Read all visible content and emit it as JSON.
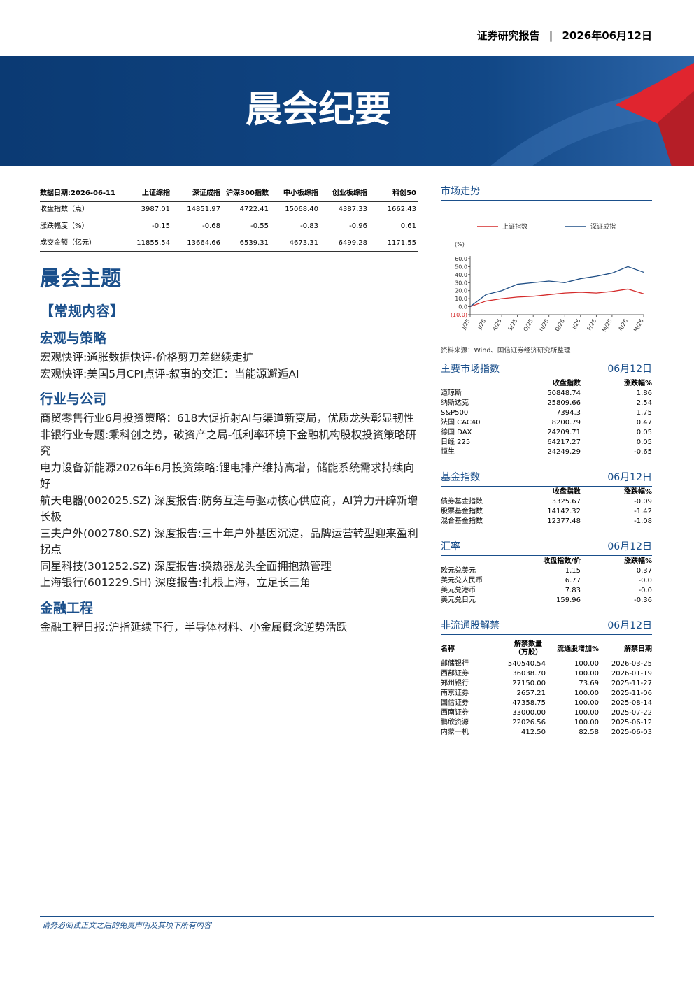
{
  "header": {
    "report_type": "证券研究报告",
    "date": "2026年06月12日",
    "title": "晨会纪要"
  },
  "market_table": {
    "header": [
      "数据日期:2026-06-11",
      "上证综指",
      "深证成指",
      "沪深300指数",
      "中小板综指",
      "创业板综指",
      "科创50"
    ],
    "rows": [
      [
        "收盘指数（点）",
        "3987.01",
        "14851.97",
        "4722.41",
        "15068.40",
        "4387.33",
        "1662.43"
      ],
      [
        "涨跌幅度（%）",
        "-0.15",
        "-0.68",
        "-0.55",
        "-0.83",
        "-0.96",
        "0.61"
      ],
      [
        "成交金额（亿元）",
        "11855.54",
        "13664.66",
        "6539.31",
        "4673.31",
        "6499.28",
        "1171.55"
      ]
    ]
  },
  "themes": {
    "title": "晨会主题",
    "subtitle": "【常规内容】",
    "sections": [
      {
        "heading": "宏观与策略",
        "items": [
          "宏观快评:通胀数据快评-价格剪刀差继续走扩",
          "宏观快评:美国5月CPI点评-叙事的交汇：当能源邂逅AI"
        ]
      },
      {
        "heading": "行业与公司",
        "items": [
          "商贸零售行业6月投资策略：618大促折射AI与渠道新变局，优质龙头彰显韧性",
          "非银行业专题:乘科创之势，破资产之局-低利率环境下金融机构股权投资策略研究",
          "电力设备新能源2026年6月投资策略:锂电排产维持高增，储能系统需求持续向好",
          "航天电器(002025.SZ) 深度报告:防务互连与驱动核心供应商，AI算力开辟新增长极",
          "三夫户外(002780.SZ) 深度报告:三十年户外基因沉淀，品牌运营转型迎来盈利拐点",
          "同星科技(301252.SZ) 深度报告:换热器龙头全面拥抱热管理",
          "上海银行(601229.SH) 深度报告:扎根上海，立足长三角"
        ]
      },
      {
        "heading": "金融工程",
        "items": [
          "金融工程日报:沪指延续下行，半导体材料、小金属概念逆势活跃"
        ]
      }
    ]
  },
  "chart_data": {
    "type": "line",
    "title": "市场走势",
    "y_unit": "(%)",
    "categories": [
      "J/25",
      "J/25",
      "A/25",
      "S/25",
      "O/25",
      "N/25",
      "D/25",
      "J/26",
      "F/26",
      "M/26",
      "A/26",
      "M/26"
    ],
    "series": [
      {
        "name": "上证指数",
        "color": "#d42a2a",
        "values": [
          0,
          7,
          10,
          12,
          13,
          15,
          17,
          18,
          17,
          19,
          22,
          16
        ]
      },
      {
        "name": "深证成指",
        "color": "#1f4e85",
        "values": [
          0,
          15,
          20,
          28,
          30,
          32,
          30,
          35,
          38,
          42,
          50,
          43
        ]
      }
    ],
    "ylim": [
      -10,
      60
    ],
    "yticks": [
      {
        "value": 60,
        "label": "60.0"
      },
      {
        "value": 50,
        "label": "50.0"
      },
      {
        "value": 40,
        "label": "40.0"
      },
      {
        "value": 30,
        "label": "30.0"
      },
      {
        "value": 20,
        "label": "20.0"
      },
      {
        "value": 10,
        "label": "10.0"
      },
      {
        "value": 0,
        "label": "0.0"
      },
      {
        "value": -10,
        "label": "(10.0)"
      }
    ],
    "source": "资料来源：Wind、国信证券经济研究所整理"
  },
  "market_indices": {
    "title": "主要市场指数",
    "date": "06月12日",
    "header": [
      "收盘指数",
      "涨跌幅%"
    ],
    "rows": [
      [
        "道琼斯",
        "50848.74",
        "1.86"
      ],
      [
        "纳斯达克",
        "25809.66",
        "2.54"
      ],
      [
        "S&P500",
        "7394.3",
        "1.75"
      ],
      [
        "法国 CAC40",
        "8200.79",
        "0.47"
      ],
      [
        "德国 DAX",
        "24209.71",
        "0.05"
      ],
      [
        "日经 225",
        "64217.27",
        "0.05"
      ],
      [
        "恒生",
        "24249.29",
        "-0.65"
      ]
    ]
  },
  "fund_indices": {
    "title": "基金指数",
    "date": "06月12日",
    "header": [
      "收盘指数",
      "涨跌幅%"
    ],
    "rows": [
      [
        "债券基金指数",
        "3325.67",
        "-0.09"
      ],
      [
        "股票基金指数",
        "14142.32",
        "-1.42"
      ],
      [
        "混合基金指数",
        "12377.48",
        "-1.08"
      ]
    ]
  },
  "exchange_rates": {
    "title": "汇率",
    "date": "06月12日",
    "header": [
      "收盘指数/价",
      "涨跌幅%"
    ],
    "rows": [
      [
        "欧元兑美元",
        "1.15",
        "0.37"
      ],
      [
        "美元兑人民币",
        "6.77",
        "-0.0"
      ],
      [
        "美元兑港币",
        "7.83",
        "-0.0"
      ],
      [
        "美元兑日元",
        "159.96",
        "-0.36"
      ]
    ]
  },
  "unlocks": {
    "title": "非流通股解禁",
    "date": "06月12日",
    "header": [
      "名称",
      "解禁数量\n（万股）",
      "流通股增加%",
      "解禁日期"
    ],
    "rows": [
      [
        "邮储银行",
        "540540.54",
        "100.00",
        "2026-03-25"
      ],
      [
        "西部证券",
        "36038.70",
        "100.00",
        "2026-01-19"
      ],
      [
        "郑州银行",
        "27150.00",
        "73.69",
        "2025-11-27"
      ],
      [
        "南京证券",
        "2657.21",
        "100.00",
        "2025-11-06"
      ],
      [
        "国信证券",
        "47358.75",
        "100.00",
        "2025-08-14"
      ],
      [
        "西南证券",
        "33000.00",
        "100.00",
        "2025-07-22"
      ],
      [
        "鹏欣资源",
        "22026.56",
        "100.00",
        "2025-06-12"
      ],
      [
        "内蒙一机",
        "412.50",
        "82.58",
        "2025-06-03"
      ]
    ]
  },
  "footer": "请务必阅读正文之后的免责声明及其项下所有内容"
}
